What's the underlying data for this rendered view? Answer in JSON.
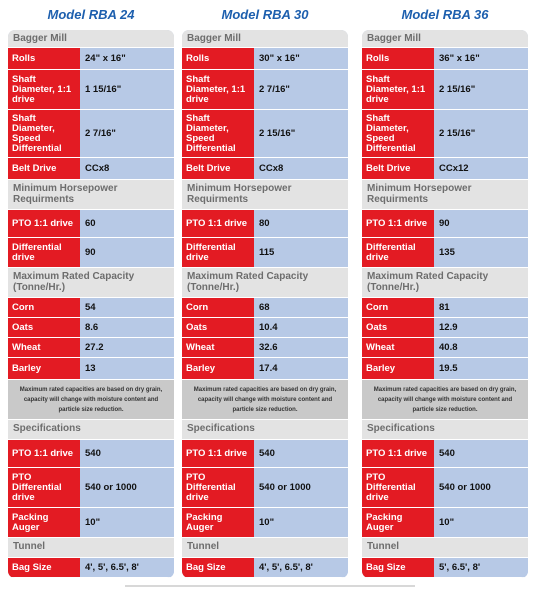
{
  "models": [
    {
      "title": "Model RBA 24",
      "sections": [
        {
          "heading": "Bagger Mill",
          "rows": [
            [
              "Rolls",
              "24\" x 16\""
            ],
            [
              "Shaft Diameter, 1:1 drive",
              "1 15/16\""
            ],
            [
              "Shaft Diameter, Speed Differential",
              "2 7/16\""
            ],
            [
              "Belt Drive",
              "CCx8"
            ]
          ]
        },
        {
          "heading": "Minimum Horsepower Requirments",
          "rows": [
            [
              "PTO 1:1 drive",
              "60"
            ],
            [
              "Differential drive",
              "90"
            ]
          ]
        },
        {
          "heading": "Maximum Rated Capacity (Tonne/Hr.)",
          "rows": [
            [
              "Corn",
              "54"
            ],
            [
              "Oats",
              "8.6"
            ],
            [
              "Wheat",
              "27.2"
            ],
            [
              "Barley",
              "13"
            ]
          ],
          "note": "Maximum rated capacities are based on dry grain, capacity will change with moisture content and particle size reduction."
        },
        {
          "heading": "Specifications",
          "rows": [
            [
              "PTO 1:1 drive",
              "540"
            ],
            [
              "PTO Differential drive",
              "540 or 1000"
            ],
            [
              "Packing Auger",
              "10\""
            ]
          ]
        },
        {
          "heading": "Tunnel",
          "rows": [
            [
              "Bag Size",
              "4', 5', 6.5', 8'"
            ]
          ]
        }
      ]
    },
    {
      "title": "Model RBA 30",
      "sections": [
        {
          "heading": "Bagger Mill",
          "rows": [
            [
              "Rolls",
              "30\" x 16\""
            ],
            [
              "Shaft Diameter, 1:1 drive",
              "2 7/16\""
            ],
            [
              "Shaft Diameter, Speed Differential",
              "2 15/16\""
            ],
            [
              "Belt Drive",
              "CCx8"
            ]
          ]
        },
        {
          "heading": "Minimum Horsepower Requirments",
          "rows": [
            [
              "PTO 1:1 drive",
              "80"
            ],
            [
              "Differential drive",
              "115"
            ]
          ]
        },
        {
          "heading": "Maximum Rated Capacity (Tonne/Hr.)",
          "rows": [
            [
              "Corn",
              "68"
            ],
            [
              "Oats",
              "10.4"
            ],
            [
              "Wheat",
              "32.6"
            ],
            [
              "Barley",
              "17.4"
            ]
          ],
          "note": "Maximum rated capacities are based on dry grain, capacity will change with moisture content and particle size reduction."
        },
        {
          "heading": "Specifications",
          "rows": [
            [
              "PTO 1:1 drive",
              "540"
            ],
            [
              "PTO Differential drive",
              "540 or 1000"
            ],
            [
              "Packing Auger",
              "10\""
            ]
          ]
        },
        {
          "heading": "Tunnel",
          "rows": [
            [
              "Bag Size",
              "4', 5', 6.5', 8'"
            ]
          ]
        }
      ]
    },
    {
      "title": "Model RBA 36",
      "sections": [
        {
          "heading": "Bagger Mill",
          "rows": [
            [
              "Rolls",
              "36\" x 16\""
            ],
            [
              "Shaft Diameter, 1:1 drive",
              "2 15/16\""
            ],
            [
              "Shaft Diameter, Speed Differential",
              "2 15/16\""
            ],
            [
              "Belt Drive",
              "CCx12"
            ]
          ]
        },
        {
          "heading": "Minimum Horsepower Requirments",
          "rows": [
            [
              "PTO 1:1 drive",
              "90"
            ],
            [
              "Differential drive",
              "135"
            ]
          ]
        },
        {
          "heading": "Maximum Rated Capacity (Tonne/Hr.)",
          "rows": [
            [
              "Corn",
              "81"
            ],
            [
              "Oats",
              "12.9"
            ],
            [
              "Wheat",
              "40.8"
            ],
            [
              "Barley",
              "19.5"
            ]
          ],
          "note": "Maximum rated capacities are based on dry grain, capacity will change with moisture content and particle size reduction."
        },
        {
          "heading": "Specifications",
          "rows": [
            [
              "PTO 1:1 drive",
              "540"
            ],
            [
              "PTO Differential drive",
              "540 or 1000"
            ],
            [
              "Packing Auger",
              "10\""
            ]
          ]
        },
        {
          "heading": "Tunnel",
          "rows": [
            [
              "Bag Size",
              "5', 6.5', 8'"
            ]
          ]
        }
      ]
    }
  ]
}
